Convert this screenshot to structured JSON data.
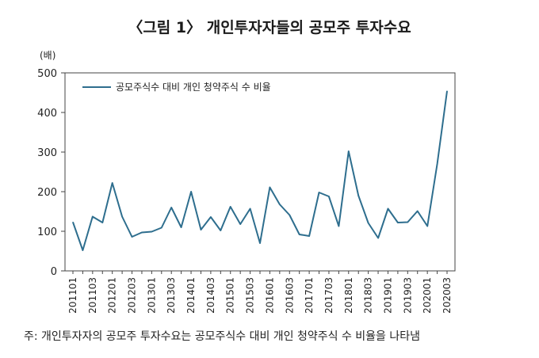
{
  "chart_data": {
    "type": "line",
    "title": "〈그림 1〉 개인투자자들의 공모주 투자수요",
    "ylabel": "(배)",
    "xlabel": "",
    "ylim": [
      0,
      500
    ],
    "yticks": [
      0,
      100,
      200,
      300,
      400,
      500
    ],
    "grid": false,
    "legend": "top-left",
    "x": [
      "201101",
      "201102",
      "201103",
      "201104",
      "201201",
      "201202",
      "201203",
      "201204",
      "201301",
      "201302",
      "201303",
      "201304",
      "201401",
      "201402",
      "201403",
      "201404",
      "201501",
      "201502",
      "201503",
      "201504",
      "201601",
      "201602",
      "201603",
      "201604",
      "201701",
      "201702",
      "201703",
      "201704",
      "201801",
      "201802",
      "201803",
      "201804",
      "201901",
      "201902",
      "201903",
      "201904",
      "202001",
      "202002",
      "202003"
    ],
    "xtick_labels": [
      "201101",
      "201103",
      "201201",
      "201203",
      "201301",
      "201303",
      "201401",
      "201403",
      "201501",
      "201503",
      "201601",
      "201603",
      "201701",
      "201703",
      "201801",
      "201803",
      "201901",
      "201903",
      "202001",
      "202003"
    ],
    "series": [
      {
        "name": "공모주식수 대비 개인 청약주식 수 비율",
        "color": "#2e6e8e",
        "values": [
          123,
          52,
          137,
          122,
          222,
          137,
          86,
          97,
          99,
          109,
          160,
          110,
          200,
          104,
          136,
          102,
          162,
          118,
          157,
          70,
          211,
          168,
          141,
          92,
          88,
          198,
          188,
          113,
          302,
          190,
          121,
          83,
          157,
          122,
          123,
          151,
          113,
          270,
          454
        ]
      }
    ]
  },
  "footnote": "주: 개인투자자의 공모주 투자수요는 공모주식수 대비 개인 청약주식 수 비율을 나타냄"
}
